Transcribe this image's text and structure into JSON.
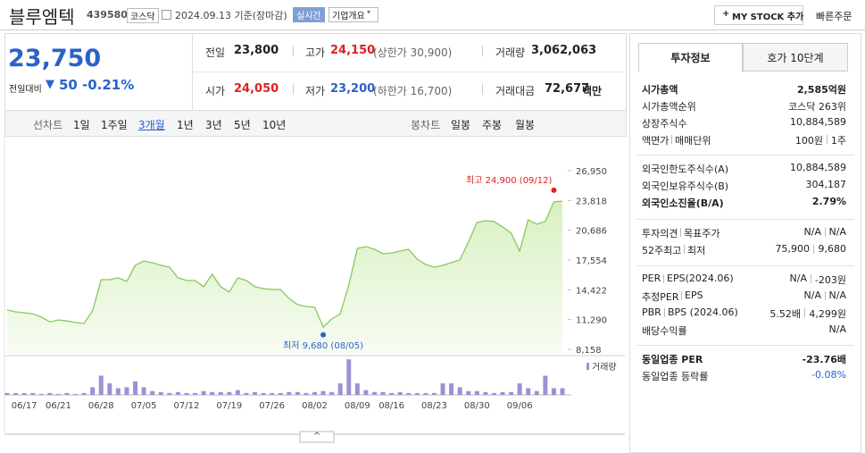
{
  "header": {
    "name": "블루엠텍",
    "code": "439580",
    "market": "코스닥",
    "date": "2024.09.13 기준(장마감)",
    "realtime": "실시간",
    "company_info": "기업개요",
    "my_stock": "MY STOCK 추가",
    "quick_order": "빠른주문"
  },
  "price": {
    "current": "23,750",
    "change_label": "전일대비",
    "change": "50",
    "change_pct": "-0.21%"
  },
  "summary": [
    {
      "label": "전일",
      "value": "23,800"
    },
    {
      "label": "고가",
      "value": "24,150",
      "extra": "(상한가 30,900)"
    },
    {
      "label": "거래량",
      "value": "3,062,063"
    },
    {
      "label": "시가",
      "value": "24,050"
    },
    {
      "label": "저가",
      "value": "23,200",
      "extra": "(하한가 16,700)"
    },
    {
      "label": "거래대금",
      "value": "72,677",
      "unit": "백만"
    }
  ],
  "tabs": {
    "line_label": "선차트",
    "periods": [
      "1일",
      "1주일",
      "3개월",
      "1년",
      "3년",
      "5년",
      "10년"
    ],
    "candle_label": "봉차트",
    "candles": [
      "일봉",
      "주봉",
      "월봉"
    ]
  },
  "chart_data": [
    {
      "type": "area",
      "color": "#86c95d",
      "categories": [
        null,
        null,
        "06/17",
        null,
        null,
        null,
        "06/21",
        null,
        null,
        null,
        null,
        "06/28",
        null,
        null,
        null,
        null,
        "07/05",
        null,
        null,
        null,
        null,
        "07/12",
        null,
        null,
        null,
        null,
        "07/19",
        null,
        null,
        null,
        null,
        "07/26",
        null,
        null,
        null,
        null,
        "08/02",
        null,
        null,
        null,
        null,
        "08/09",
        null,
        null,
        null,
        "08/16",
        null,
        null,
        null,
        null,
        "08/23",
        null,
        null,
        null,
        null,
        "08/30",
        null,
        null,
        null,
        null,
        "09/06",
        null,
        null,
        null,
        null,
        null
      ],
      "values": [
        12300,
        12100,
        12000,
        11900,
        11550,
        11050,
        11250,
        11150,
        10980,
        10880,
        12200,
        15490,
        15490,
        15680,
        15300,
        17000,
        17460,
        17270,
        17000,
        16800,
        15680,
        15400,
        15400,
        14740,
        16050,
        14740,
        14180,
        15680,
        15400,
        14740,
        14550,
        14450,
        14450,
        13520,
        12860,
        12670,
        12580,
        10500,
        11350,
        11900,
        14930,
        18780,
        18960,
        18680,
        18210,
        18300,
        18490,
        18680,
        17650,
        17080,
        16800,
        16990,
        17270,
        17560,
        19430,
        21500,
        21690,
        21600,
        21040,
        20380,
        18490,
        21790,
        21320,
        21600,
        23670,
        23750
      ],
      "ylim": [
        8158,
        26950
      ],
      "yticks": [
        {
          "value": 8158,
          "label": "8,158"
        },
        {
          "value": 11290,
          "label": "11,290"
        },
        {
          "value": 14422,
          "label": "14,422"
        },
        {
          "value": 17554,
          "label": "17,554"
        },
        {
          "value": 20686,
          "label": "20,686"
        },
        {
          "value": 23818,
          "label": "23,818"
        },
        {
          "value": 26950,
          "label": "26,950"
        }
      ],
      "annotations": [
        {
          "text": "최고 24,900 (09/12)",
          "value": 24900,
          "color": "#e02020"
        },
        {
          "text": "최저 9,680 (08/05)",
          "value": 9680,
          "color": "#2a62c9"
        }
      ]
    },
    {
      "type": "bar",
      "legend": "거래량",
      "color": "#9e90d4",
      "ylim": [
        0,
        18000000
      ],
      "values": [
        880000,
        880000,
        880000,
        880000,
        440000,
        880000,
        440000,
        880000,
        440000,
        880000,
        3520000,
        8800000,
        5280000,
        3080000,
        3520000,
        6160000,
        3520000,
        1760000,
        1320000,
        880000,
        1320000,
        880000,
        880000,
        1760000,
        1320000,
        1320000,
        1320000,
        2200000,
        880000,
        1320000,
        880000,
        880000,
        880000,
        1320000,
        1320000,
        880000,
        1320000,
        1760000,
        1320000,
        5280000,
        16280000,
        5280000,
        2200000,
        1320000,
        1320000,
        880000,
        1320000,
        880000,
        880000,
        880000,
        880000,
        5280000,
        5280000,
        3520000,
        1760000,
        1760000,
        1320000,
        880000,
        1320000,
        1320000,
        5280000,
        3080000,
        1760000,
        8800000,
        3080000,
        3062063
      ]
    }
  ],
  "info_panel": {
    "tabs": [
      "투자정보",
      "호가 10단계"
    ],
    "sections": [
      {
        "rows": [
          {
            "label": "시가총액",
            "value": "2,585억원",
            "bold": true
          },
          {
            "label": "시가총액순위",
            "value": "코스닥 263위"
          },
          {
            "label": "상장주식수",
            "value": "10,884,589"
          },
          {
            "label": "액면가",
            "label2": "매매단위",
            "value": "100원",
            "value2": "1주"
          }
        ]
      },
      {
        "rows": [
          {
            "label": "외국인한도주식수(A)",
            "value": "10,884,589"
          },
          {
            "label": "외국인보유주식수(B)",
            "value": "304,187"
          },
          {
            "label": "외국인소진율(B/A)",
            "value": "2.79%",
            "bold": true
          }
        ]
      },
      {
        "rows": [
          {
            "label": "투자의견",
            "label2": "목표주가",
            "value": "N/A",
            "value2": "N/A"
          },
          {
            "label": "52주최고",
            "label2": "최저",
            "value": "75,900",
            "value2": "9,680"
          }
        ]
      },
      {
        "rows": [
          {
            "label": "PER",
            "label2": "EPS(2024.06)",
            "value": "N/A",
            "value2": "-203원"
          },
          {
            "label": "추정PER",
            "label2": "EPS",
            "value": "N/A",
            "value2": "N/A"
          },
          {
            "label": "PBR",
            "label2": "BPS (2024.06)",
            "value": "5.52배",
            "value2": "4,299원"
          },
          {
            "label": "배당수익률",
            "value": "N/A"
          }
        ]
      },
      {
        "rows": [
          {
            "label": "동일업종 PER",
            "value": "-23.76배",
            "bold": true
          },
          {
            "label": "동일업종 등락률",
            "value": "-0.08%",
            "blue": true
          }
        ]
      }
    ]
  }
}
